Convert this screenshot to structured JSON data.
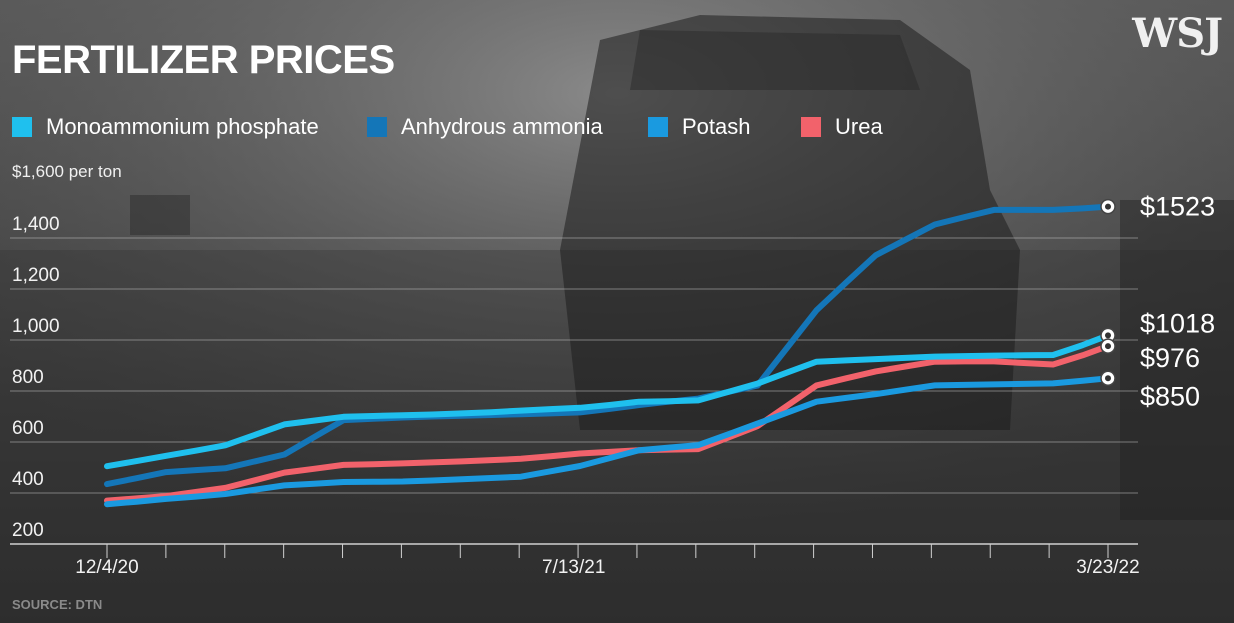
{
  "title": "FERTILIZER PRICES",
  "logo": "WSJ",
  "unit_label": "$1,600 per ton",
  "source": "SOURCE: DTN",
  "colors": {
    "monoammonium_phosphate": "#1fc0ee",
    "anhydrous_ammonia": "#1476b8",
    "potash": "#1a9ae0",
    "urea": "#f2626b"
  },
  "chart_data": {
    "type": "line",
    "title": "FERTILIZER PRICES",
    "ylabel": "$1,600 per ton",
    "ylim": [
      200,
      1600
    ],
    "y_ticks": [
      200,
      400,
      600,
      800,
      1000,
      1200,
      1400
    ],
    "y_tick_labels": [
      "200",
      "400",
      "600",
      "800",
      "1,000",
      "1,200",
      "1,400"
    ],
    "x": [
      "2020-12-04",
      "2020-12-18",
      "2021-01-01",
      "2021-01-15",
      "2021-01-29",
      "2021-02-12",
      "2021-02-26",
      "2021-03-12",
      "2021-03-26",
      "2021-04-09",
      "2021-04-23",
      "2021-05-07",
      "2021-05-21",
      "2021-06-04",
      "2021-06-18",
      "2021-07-02",
      "2021-07-16",
      "2021-07-30",
      "2021-08-13",
      "2021-08-27",
      "2021-09-10",
      "2021-09-24",
      "2021-10-08",
      "2021-10-22",
      "2021-11-05",
      "2021-11-19",
      "2021-12-03",
      "2021-12-17",
      "2021-12-31",
      "2022-01-14",
      "2022-01-28",
      "2022-02-11",
      "2022-02-25",
      "2022-03-11",
      "2022-03-23"
    ],
    "x_tick_labels": [
      "12/4/20",
      "7/13/21",
      "3/23/22"
    ],
    "x_tick_dates": [
      "2020-12-04",
      "2021-07-13",
      "2022-03-23"
    ],
    "series": [
      {
        "name": "Monoammonium phosphate",
        "key": "monoammonium_phosphate",
        "end_label": "$1018",
        "values": [
          505,
          525,
          546,
          566,
          587,
          628,
          669,
          684,
          699,
          702,
          705,
          708,
          712,
          717,
          723,
          729,
          734,
          745,
          758,
          760,
          763,
          796,
          829,
          872,
          915,
          920,
          925,
          930,
          935,
          937,
          939,
          940,
          941,
          980,
          1018
        ]
      },
      {
        "name": "Anhydrous ammonia",
        "key": "anhydrous_ammonia",
        "end_label": "$1523",
        "values": [
          435,
          458,
          482,
          490,
          497,
          524,
          551,
          619,
          686,
          691,
          696,
          700,
          703,
          706,
          709,
          712,
          716,
          730,
          745,
          758,
          770,
          796,
          821,
          969,
          1117,
          1225,
          1332,
          1393,
          1453,
          1482,
          1510,
          1510,
          1510,
          1516,
          1523
        ]
      },
      {
        "name": "Potash",
        "key": "potash",
        "end_label": "$850",
        "values": [
          356,
          366,
          377,
          386,
          396,
          413,
          430,
          436,
          443,
          444,
          445,
          449,
          454,
          459,
          464,
          485,
          506,
          537,
          568,
          578,
          588,
          630,
          672,
          715,
          758,
          773,
          788,
          805,
          822,
          824,
          826,
          828,
          830,
          840,
          850
        ]
      },
      {
        "name": "Urea",
        "key": "urea",
        "end_label": "$976",
        "values": [
          370,
          379,
          388,
          404,
          420,
          450,
          480,
          495,
          510,
          513,
          516,
          520,
          524,
          529,
          534,
          544,
          555,
          561,
          568,
          570,
          572,
          617,
          662,
          742,
          822,
          850,
          877,
          896,
          915,
          916,
          916,
          910,
          904,
          940,
          976
        ]
      }
    ],
    "grid": true,
    "legend_position": "top"
  }
}
